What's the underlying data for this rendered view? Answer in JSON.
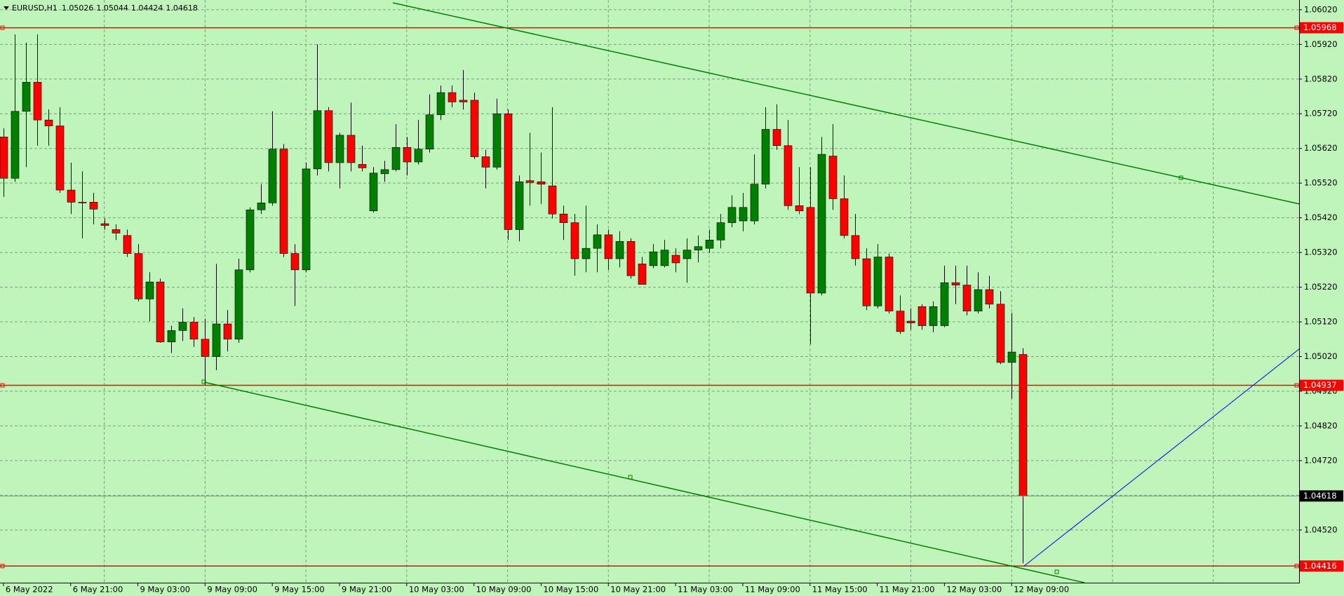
{
  "chart_data": {
    "type": "candlestick",
    "title": "EURUSD,H1",
    "categories": [
      "6 May 2022",
      null,
      null,
      null,
      null,
      null,
      "6 May 21:00",
      null,
      null,
      null,
      null,
      null,
      "9 May 03:00",
      null,
      null,
      null,
      null,
      null,
      "9 May 09:00",
      null,
      null,
      null,
      null,
      null,
      "9 May 15:00",
      null,
      null,
      null,
      null,
      null,
      "9 May 21:00",
      null,
      null,
      null,
      null,
      null,
      "10 May 03:00",
      null,
      null,
      null,
      null,
      null,
      "10 May 09:00",
      null,
      null,
      null,
      null,
      null,
      "10 May 15:00",
      null,
      null,
      null,
      null,
      null,
      "10 May 21:00",
      null,
      null,
      null,
      null,
      null,
      "11 May 03:00",
      null,
      null,
      null,
      null,
      null,
      "11 May 09:00",
      null,
      null,
      null,
      null,
      null,
      "11 May 15:00",
      null,
      null,
      null,
      null,
      null,
      "11 May 21:00",
      null,
      null,
      null,
      null,
      null,
      "12 May 03:00",
      null,
      null,
      null,
      null,
      null,
      "12 May 09:00",
      null
    ],
    "open": [
      1.05653,
      1.05534,
      1.05727,
      1.05811,
      1.05702,
      1.05685,
      1.055,
      1.05465,
      1.05465,
      1.05403,
      1.05386,
      1.05369,
      1.05317,
      1.05186,
      1.05235,
      1.05062,
      1.05095,
      1.05119,
      1.0507,
      1.0502,
      1.05114,
      1.0507,
      1.0527,
      1.05443,
      1.05463,
      1.05618,
      1.05317,
      1.0527,
      1.05561,
      1.05729,
      1.05579,
      1.05658,
      1.05574,
      1.0544,
      1.05547,
      1.05559,
      1.05623,
      1.05581,
      1.05618,
      1.05717,
      1.05781,
      1.05759,
      1.05759,
      1.05596,
      1.05566,
      1.0572,
      1.05386,
      1.05527,
      1.05524,
      1.05512,
      1.05431,
      1.05406,
      1.05302,
      1.05332,
      1.05371,
      1.05302,
      1.05352,
      1.05287,
      1.05282,
      1.05282,
      1.05312,
      1.05302,
      1.05327,
      1.05332,
      1.05356,
      1.05406,
      1.05411,
      1.05411,
      1.05517,
      1.05675,
      1.05628,
      1.05455,
      1.0545,
      1.05203,
      1.05598,
      1.05475,
      1.05369,
      1.05302,
      1.05166,
      1.05307,
      1.05151,
      1.05122,
      1.05164,
      1.05109,
      1.05109,
      1.05233,
      1.05226,
      1.05151,
      1.05213,
      1.05171,
      1.05003,
      1.05026
    ],
    "high": [
      1.05678,
      1.05949,
      1.05925,
      1.05949,
      1.05732,
      1.05739,
      1.05579,
      1.05554,
      1.05492,
      1.05418,
      1.05401,
      1.05386,
      1.05344,
      1.05263,
      1.05245,
      1.05109,
      1.05159,
      1.05134,
      1.05129,
      1.05287,
      1.05154,
      1.05302,
      1.0545,
      1.05517,
      1.05727,
      1.05633,
      1.05344,
      1.05579,
      1.0592,
      1.05739,
      1.05665,
      1.05752,
      1.05628,
      1.05566,
      1.05584,
      1.0569,
      1.05653,
      1.05702,
      1.05776,
      1.05801,
      1.05801,
      1.05846,
      1.05781,
      1.05616,
      1.05764,
      1.05732,
      1.05542,
      1.05665,
      1.05608,
      1.05739,
      1.05455,
      1.05431,
      1.05455,
      1.05401,
      1.05386,
      1.05381,
      1.05361,
      1.05307,
      1.05344,
      1.05356,
      1.05332,
      1.05361,
      1.05369,
      1.05386,
      1.05431,
      1.05485,
      1.05492,
      1.05603,
      1.05739,
      1.05747,
      1.05702,
      1.05566,
      1.05566,
      1.05653,
      1.0569,
      1.05542,
      1.05431,
      1.05332,
      1.05344,
      1.05317,
      1.05196,
      1.05159,
      1.05171,
      1.05179,
      1.05282,
      1.05282,
      1.05282,
      1.05263,
      1.05253,
      1.05208,
      1.05146,
      1.05044
    ],
    "low": [
      1.0548,
      1.05524,
      1.05566,
      1.05628,
      1.05628,
      1.05492,
      1.05431,
      1.05361,
      1.05401,
      1.05386,
      1.05356,
      1.05307,
      1.05179,
      1.05122,
      1.0506,
      1.0503,
      1.05065,
      1.05048,
      1.04937,
      1.04981,
      1.05035,
      1.0506,
      1.05263,
      1.05431,
      1.05455,
      1.05307,
      1.05166,
      1.05263,
      1.05542,
      1.05554,
      1.05505,
      1.05554,
      1.05554,
      1.05435,
      1.05524,
      1.05554,
      1.05542,
      1.05574,
      1.05608,
      1.05702,
      1.05739,
      1.05732,
      1.05589,
      1.05505,
      1.05559,
      1.05356,
      1.05352,
      1.05455,
      1.0546,
      1.05418,
      1.05356,
      1.05253,
      1.05263,
      1.05263,
      1.0527,
      1.05277,
      1.05245,
      1.05228,
      1.05275,
      1.05277,
      1.05263,
      1.05233,
      1.05292,
      1.05319,
      1.05332,
      1.05393,
      1.05381,
      1.05401,
      1.05505,
      1.05616,
      1.05443,
      1.05431,
      1.05055,
      1.05196,
      1.05443,
      1.05361,
      1.05282,
      1.05154,
      1.05159,
      1.05144,
      1.05085,
      1.05097,
      1.05097,
      1.0509,
      1.05105,
      1.05171,
      1.05139,
      1.05144,
      1.05159,
      1.04998,
      1.04899,
      1.04424
    ],
    "close": [
      1.05534,
      1.05727,
      1.05811,
      1.05702,
      1.05685,
      1.055,
      1.05465,
      1.05463,
      1.05445,
      1.05398,
      1.05376,
      1.05317,
      1.05186,
      1.05235,
      1.05062,
      1.05095,
      1.05119,
      1.0507,
      1.0502,
      1.05114,
      1.0507,
      1.0527,
      1.05443,
      1.05463,
      1.05618,
      1.05317,
      1.0527,
      1.05561,
      1.05729,
      1.05579,
      1.05658,
      1.05579,
      1.05564,
      1.05549,
      1.05559,
      1.05623,
      1.05581,
      1.05618,
      1.05717,
      1.05781,
      1.05754,
      1.05754,
      1.05596,
      1.05566,
      1.0572,
      1.05386,
      1.05524,
      1.05522,
      1.05517,
      1.05431,
      1.05406,
      1.05302,
      1.05332,
      1.05371,
      1.05302,
      1.05352,
      1.05253,
      1.05228,
      1.05322,
      1.05327,
      1.0529,
      1.05327,
      1.05337,
      1.05356,
      1.05406,
      1.0545,
      1.0545,
      1.05517,
      1.05675,
      1.05628,
      1.05455,
      1.0544,
      1.05203,
      1.05603,
      1.05475,
      1.05369,
      1.05302,
      1.05166,
      1.05307,
      1.05151,
      1.05092,
      1.05117,
      1.05109,
      1.05164,
      1.05233,
      1.05226,
      1.05151,
      1.05213,
      1.05171,
      1.05003,
      1.05033,
      1.04618
    ],
    "ylim": [
      1.04368,
      1.06048
    ],
    "yticks": [
      {
        "value": 1.0602,
        "label": "1.06020"
      },
      {
        "value": 1.0592,
        "label": "1.05920"
      },
      {
        "value": 1.0582,
        "label": "1.05820"
      },
      {
        "value": 1.0572,
        "label": "1.05720"
      },
      {
        "value": 1.0562,
        "label": "1.05620"
      },
      {
        "value": 1.0552,
        "label": "1.05520"
      },
      {
        "value": 1.0542,
        "label": "1.05420"
      },
      {
        "value": 1.0532,
        "label": "1.05320"
      },
      {
        "value": 1.0522,
        "label": "1.05220"
      },
      {
        "value": 1.0512,
        "label": "1.05120"
      },
      {
        "value": 1.0502,
        "label": "1.05020"
      },
      {
        "value": 1.0492,
        "label": "1.04920"
      },
      {
        "value": 1.0482,
        "label": "1.04820"
      },
      {
        "value": 1.0472,
        "label": "1.04720"
      },
      {
        "value": 1.0462,
        "label": "1.04620"
      },
      {
        "value": 1.0452,
        "label": "1.04520"
      }
    ],
    "levels": [
      {
        "value": 1.05968,
        "color": "#ff0000"
      },
      {
        "value": 1.04937,
        "color": "#ff0000"
      },
      {
        "value": 1.04416,
        "color": "#ff0000"
      }
    ],
    "up_color": "#008000",
    "down_color": "#ff0000",
    "wick_color": "#000000",
    "grid": true
  }
}
